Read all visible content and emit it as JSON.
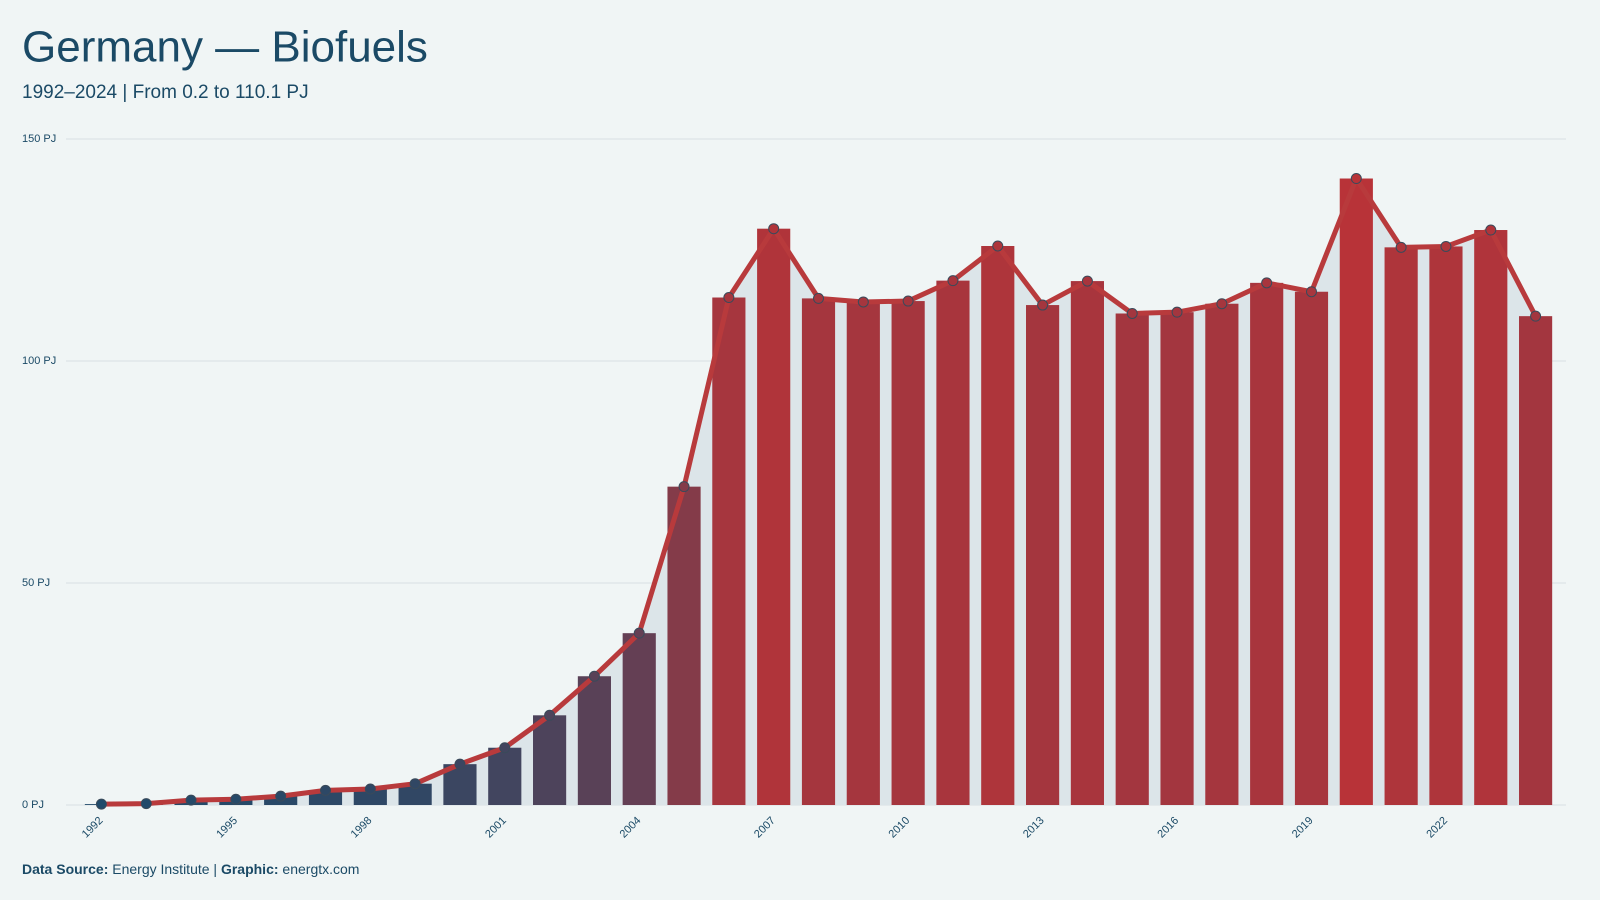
{
  "chart_data": {
    "type": "bar_line",
    "title": "Germany — Biofuels",
    "subtitle": "1992–2024 | From 0.2 to 110.1 PJ",
    "source_label": "Data Source:",
    "source": "Energy Institute |",
    "graphic_label": "Graphic:",
    "graphic": "energtx.com",
    "x": [
      1992,
      1993,
      1994,
      1995,
      1996,
      1997,
      1998,
      1999,
      2000,
      2001,
      2002,
      2003,
      2004,
      2005,
      2006,
      2007,
      2008,
      2009,
      2010,
      2011,
      2012,
      2013,
      2014,
      2015,
      2016,
      2017,
      2018,
      2019,
      2020,
      2021,
      2022,
      2023,
      2024
    ],
    "values": [
      0.2,
      0.3,
      1.1,
      1.3,
      2.0,
      3.3,
      3.6,
      4.8,
      9.2,
      12.9,
      20.2,
      29.0,
      38.7,
      71.7,
      114.3,
      129.8,
      114.1,
      113.3,
      113.5,
      118.1,
      125.9,
      112.6,
      118.0,
      110.7,
      111.0,
      112.9,
      117.6,
      115.6,
      141.1,
      125.6,
      125.8,
      129.5,
      110.1
    ],
    "xlim": [
      1991.5,
      2024.5
    ],
    "xticks": [
      1992,
      1995,
      1998,
      2001,
      2004,
      2007,
      2010,
      2013,
      2016,
      2019,
      2022
    ],
    "ylim": [
      0,
      150
    ],
    "yticks": [
      {
        "value": 0,
        "label": "0 PJ"
      },
      {
        "value": 50,
        "label": "50 PJ"
      },
      {
        "value": 100,
        "label": "100 PJ"
      },
      {
        "value": 150,
        "label": "150 PJ"
      }
    ],
    "grid": true,
    "colors": [
      "#1d4a6b",
      "#b83338"
    ],
    "line_color": "#b83a3c",
    "area_color": "#dce5e9"
  }
}
